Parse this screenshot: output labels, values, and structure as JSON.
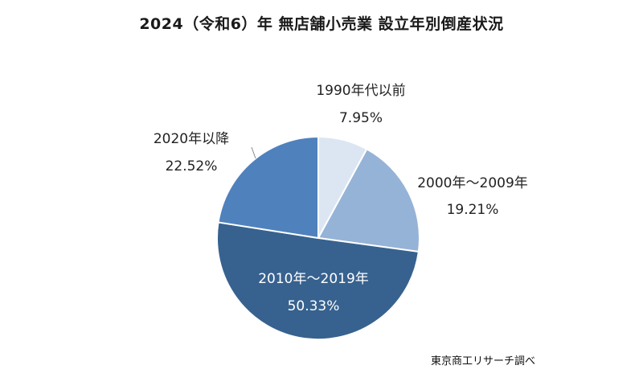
{
  "chart_data": {
    "type": "pie",
    "title": "2024（令和6）年 無店舗小売業 設立年別倒産状況",
    "source": "東京商工リサーチ調べ",
    "slices": [
      {
        "label": "1990年代以前",
        "value": 7.95,
        "value_label": "7.95%",
        "color": "#dce6f2"
      },
      {
        "label": "2000年～2009年",
        "value": 19.21,
        "value_label": "19.21%",
        "color": "#95b3d7"
      },
      {
        "label": "2010年～2019年",
        "value": 50.33,
        "value_label": "50.33%",
        "color": "#37628f"
      },
      {
        "label": "2020年以降",
        "value": 22.52,
        "value_label": "22.52%",
        "color": "#4f81bd"
      }
    ],
    "start_angle_deg": 0,
    "direction": "clockwise",
    "legend": "none"
  }
}
